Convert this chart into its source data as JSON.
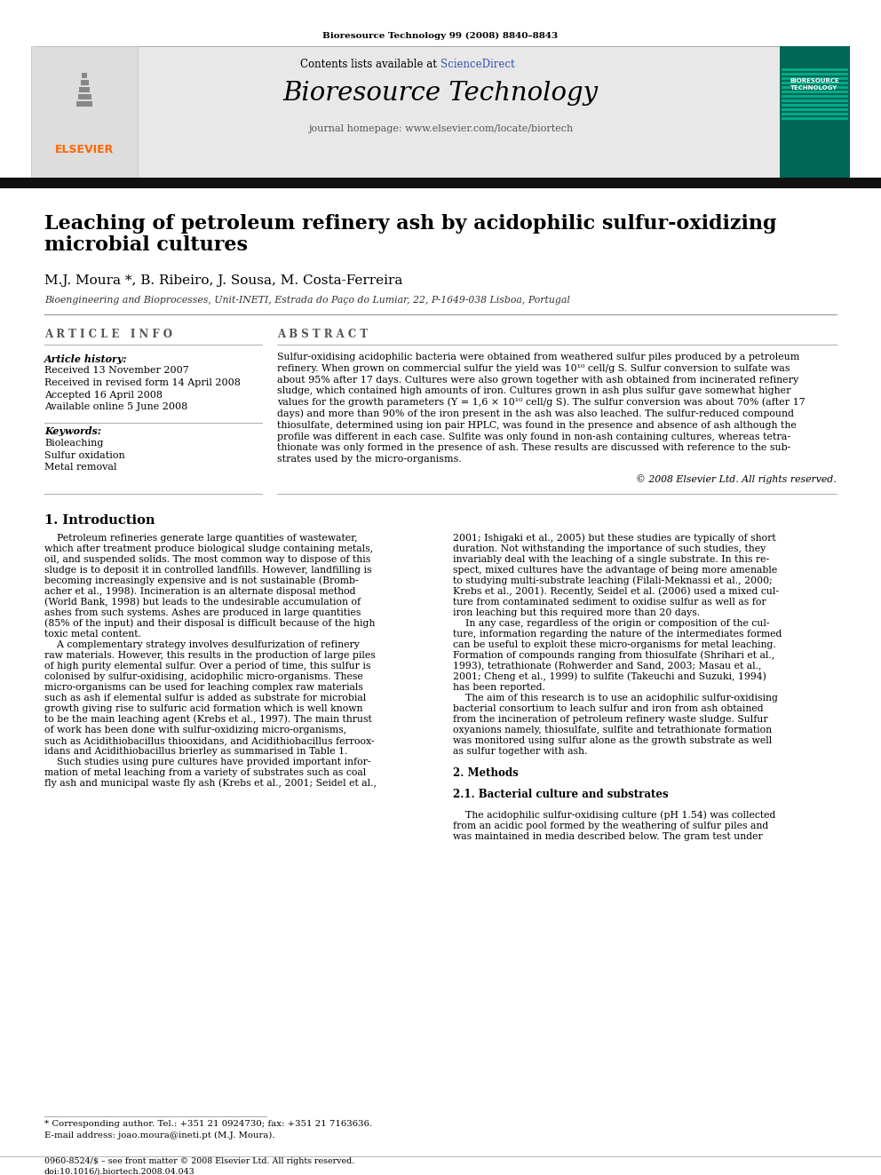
{
  "page_title_small": "Bioresource Technology 99 (2008) 8840–8843",
  "journal_name": "Bioresource Technology",
  "contents_line_plain": "Contents lists available at ",
  "contents_line_link": "ScienceDirect",
  "journal_homepage": "journal homepage: www.elsevier.com/locate/biortech",
  "article_title_line1": "Leaching of petroleum refinery ash by acidophilic sulfur-oxidizing",
  "article_title_line2": "microbial cultures",
  "authors": "M.J. Moura *, B. Ribeiro, J. Sousa, M. Costa-Ferreira",
  "affiliation": "Bioengineering and Bioprocesses, Unit-INETI, Estrada do Paço do Lumiar, 22, P-1649-038 Lisboa, Portugal",
  "article_info_header": "A R T I C L E   I N F O",
  "abstract_header": "A B S T R A C T",
  "article_history_label": "Article history:",
  "received": "Received 13 November 2007",
  "received_revised": "Received in revised form 14 April 2008",
  "accepted": "Accepted 16 April 2008",
  "available": "Available online 5 June 2008",
  "keywords_label": "Keywords:",
  "keywords": [
    "Bioleaching",
    "Sulfur oxidation",
    "Metal removal"
  ],
  "abstract_lines": [
    "Sulfur-oxidising acidophilic bacteria were obtained from weathered sulfur piles produced by a petroleum",
    "refinery. When grown on commercial sulfur the yield was 10¹⁰ cell/g S. Sulfur conversion to sulfate was",
    "about 95% after 17 days. Cultures were also grown together with ash obtained from incinerated refinery",
    "sludge, which contained high amounts of iron. Cultures grown in ash plus sulfur gave somewhat higher",
    "values for the growth parameters (Y = 1,6 × 10¹⁰ cell/g S). The sulfur conversion was about 70% (after 17",
    "days) and more than 90% of the iron present in the ash was also leached. The sulfur-reduced compound",
    "thiosulfate, determined using ion pair HPLC, was found in the presence and absence of ash although the",
    "profile was different in each case. Sulfite was only found in non-ash containing cultures, whereas tetra-",
    "thionate was only formed in the presence of ash. These results are discussed with reference to the sub-",
    "strates used by the micro-organisms."
  ],
  "copyright": "© 2008 Elsevier Ltd. All rights reserved.",
  "section1_header": "1. Introduction",
  "intro_col1_lines": [
    "    Petroleum refineries generate large quantities of wastewater,",
    "which after treatment produce biological sludge containing metals,",
    "oil, and suspended solids. The most common way to dispose of this",
    "sludge is to deposit it in controlled landfills. However, landfilling is",
    "becoming increasingly expensive and is not sustainable (Bromb-",
    "acher et al., 1998). Incineration is an alternate disposal method",
    "(World Bank, 1998) but leads to the undesirable accumulation of",
    "ashes from such systems. Ashes are produced in large quantities",
    "(85% of the input) and their disposal is difficult because of the high",
    "toxic metal content.",
    "    A complementary strategy involves desulfurization of refinery",
    "raw materials. However, this results in the production of large piles",
    "of high purity elemental sulfur. Over a period of time, this sulfur is",
    "colonised by sulfur-oxidising, acidophilic micro-organisms. These",
    "micro-organisms can be used for leaching complex raw materials",
    "such as ash if elemental sulfur is added as substrate for microbial",
    "growth giving rise to sulfuric acid formation which is well known",
    "to be the main leaching agent (Krebs et al., 1997). The main thrust",
    "of work has been done with sulfur-oxidizing micro-organisms,",
    "such as Acidithiobacillus thiooxidans, and Acidithiobacillus ferroox-",
    "idans and Acidithiobacillus brierley as summarised in Table 1.",
    "    Such studies using pure cultures have provided important infor-",
    "mation of metal leaching from a variety of substrates such as coal",
    "fly ash and municipal waste fly ash (Krebs et al., 2001; Seidel et al.,"
  ],
  "intro_col2_lines": [
    "2001; Ishigaki et al., 2005) but these studies are typically of short",
    "duration. Not withstanding the importance of such studies, they",
    "invariably deal with the leaching of a single substrate. In this re-",
    "spect, mixed cultures have the advantage of being more amenable",
    "to studying multi-substrate leaching (Filali-Meknassi et al., 2000;",
    "Krebs et al., 2001). Recently, Seidel et al. (2006) used a mixed cul-",
    "ture from contaminated sediment to oxidise sulfur as well as for",
    "iron leaching but this required more than 20 days.",
    "    In any case, regardless of the origin or composition of the cul-",
    "ture, information regarding the nature of the intermediates formed",
    "can be useful to exploit these micro-organisms for metal leaching.",
    "Formation of compounds ranging from thiosulfate (Shrihari et al.,",
    "1993), tetrathionate (Rohwerder and Sand, 2003; Masau et al.,",
    "2001; Cheng et al., 1999) to sulfite (Takeuchi and Suzuki, 1994)",
    "has been reported.",
    "    The aim of this research is to use an acidophilic sulfur-oxidising",
    "bacterial consortium to leach sulfur and iron from ash obtained",
    "from the incineration of petroleum refinery waste sludge. Sulfur",
    "oxyanions namely, thiosulfate, sulfite and tetrathionate formation",
    "was monitored using sulfur alone as the growth substrate as well",
    "as sulfur together with ash.",
    "",
    "2. Methods",
    "",
    "2.1. Bacterial culture and substrates",
    "",
    "    The acidophilic sulfur-oxidising culture (pH 1.54) was collected",
    "from an acidic pool formed by the weathering of sulfur piles and",
    "was maintained in media described below. The gram test under"
  ],
  "footnote_line1": "* Corresponding author. Tel.: +351 21 0924730; fax: +351 21 7163636.",
  "footnote_line2": "E-mail address: joao.moura@ineti.pt (M.J. Moura).",
  "bottom_line1": "0960-8524/$ – see front matter © 2008 Elsevier Ltd. All rights reserved.",
  "bottom_line2": "doi:10.1016/j.biortech.2008.04.043",
  "bg_color": "#ffffff",
  "header_bg": "#e8e8e8",
  "black_bar_color": "#111111",
  "elsevier_color": "#ff6600",
  "link_color": "#3355aa",
  "text_color": "#000000",
  "gray_text": "#555555",
  "line_color": "#999999"
}
